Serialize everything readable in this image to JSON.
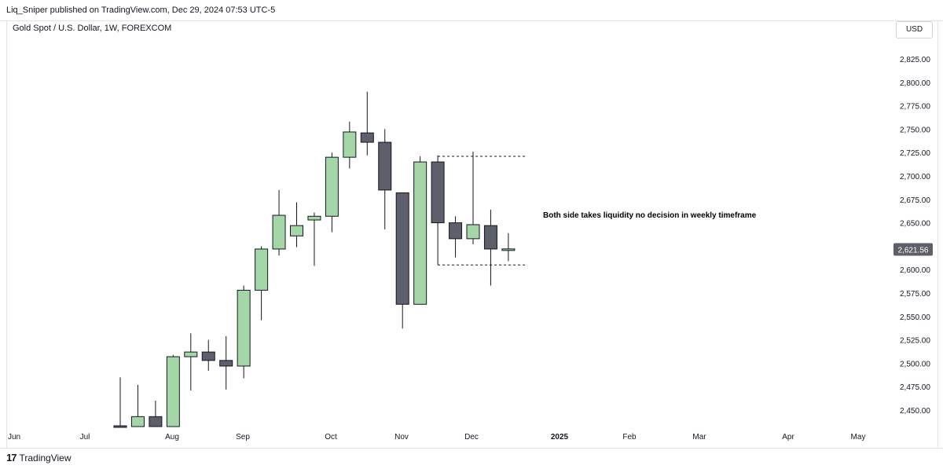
{
  "header": {
    "publish_line": "Liq_Sniper published on TradingView.com, Dec 29, 2024 07:53 UTC-5"
  },
  "symbol": {
    "title": "Gold Spot / U.S. Dollar, 1W, FOREXCOM"
  },
  "currency_button": "USD",
  "footer": {
    "brand": "TradingView",
    "logo_glyph": "17"
  },
  "colors": {
    "up_body": "#a5d6a7",
    "down_body": "#5d606b",
    "outline": "#131722",
    "price_tag_bg": "#5d606b"
  },
  "chart_data": {
    "type": "candlestick",
    "symbol": "Gold Spot / U.S. Dollar",
    "timeframe": "1W",
    "y_axis_ticks": [
      2450,
      2475,
      2500,
      2525,
      2550,
      2575,
      2600,
      2625,
      2650,
      2675,
      2700,
      2725,
      2750,
      2775,
      2800,
      2825
    ],
    "y_axis_tick_labels": [
      "2,450.00",
      "2,475.00",
      "2,500.00",
      "2,525.00",
      "2,550.00",
      "2,575.00",
      "2,600.00",
      "2,625.00",
      "2,650.00",
      "2,675.00",
      "2,700.00",
      "2,725.00",
      "2,750.00",
      "2,775.00",
      "2,800.00",
      "2,825.00"
    ],
    "ylim": [
      2430,
      2845
    ],
    "x_axis_labels": [
      "Jun",
      "Jul",
      "Aug",
      "Sep",
      "Oct",
      "Nov",
      "Dec",
      "2025",
      "Feb",
      "Mar",
      "Apr",
      "May"
    ],
    "x_axis_bold_labels": [
      "2025"
    ],
    "last_price": 2621.56,
    "last_price_label": "2,621.56",
    "candles": [
      {
        "week": "Jul 22",
        "open": 2420,
        "high": 2485,
        "low": 2360,
        "close": 2400
      },
      {
        "week": "Jul 29",
        "open": 2387,
        "high": 2477,
        "low": 2380,
        "close": 2443
      },
      {
        "week": "Aug 5",
        "open": 2443,
        "high": 2460,
        "low": 2363,
        "close": 2431
      },
      {
        "week": "Aug 12",
        "open": 2431,
        "high": 2509,
        "low": 2423,
        "close": 2507
      },
      {
        "week": "Aug 19",
        "open": 2507,
        "high": 2532,
        "low": 2471,
        "close": 2512
      },
      {
        "week": "Aug 26",
        "open": 2512,
        "high": 2525,
        "low": 2492,
        "close": 2503
      },
      {
        "week": "Sep 2",
        "open": 2503,
        "high": 2529,
        "low": 2472,
        "close": 2497
      },
      {
        "week": "Sep 9",
        "open": 2497,
        "high": 2583,
        "low": 2484,
        "close": 2578
      },
      {
        "week": "Sep 16",
        "open": 2578,
        "high": 2625,
        "low": 2546,
        "close": 2622
      },
      {
        "week": "Sep 23",
        "open": 2622,
        "high": 2685,
        "low": 2615,
        "close": 2658
      },
      {
        "week": "Sep 30",
        "open": 2636,
        "high": 2672,
        "low": 2624,
        "close": 2647
      },
      {
        "week": "Oct 7",
        "open": 2653,
        "high": 2661,
        "low": 2604,
        "close": 2657
      },
      {
        "week": "Oct 14",
        "open": 2657,
        "high": 2725,
        "low": 2640,
        "close": 2720
      },
      {
        "week": "Oct 21",
        "open": 2720,
        "high": 2758,
        "low": 2708,
        "close": 2747
      },
      {
        "week": "Oct 28",
        "open": 2746,
        "high": 2790,
        "low": 2722,
        "close": 2736
      },
      {
        "week": "Nov 4",
        "open": 2736,
        "high": 2750,
        "low": 2643,
        "close": 2685
      },
      {
        "week": "Nov 11",
        "open": 2682,
        "high": 2682,
        "low": 2537,
        "close": 2563
      },
      {
        "week": "Nov 18",
        "open": 2563,
        "high": 2721,
        "low": 2563,
        "close": 2715
      },
      {
        "week": "Nov 25",
        "open": 2715,
        "high": 2722,
        "low": 2605,
        "close": 2650
      },
      {
        "week": "Dec 2",
        "open": 2650,
        "high": 2657,
        "low": 2613,
        "close": 2633
      },
      {
        "week": "Dec 9",
        "open": 2633,
        "high": 2726,
        "low": 2627,
        "close": 2648
      },
      {
        "week": "Dec 16",
        "open": 2647,
        "high": 2664,
        "low": 2583,
        "close": 2622
      },
      {
        "week": "Dec 23",
        "open": 2621,
        "high": 2639,
        "low": 2609,
        "close": 2621.56
      }
    ],
    "annotations": [
      {
        "text": "Both side takes liquidity no decision in weekly timeframe",
        "style": "bold"
      },
      {
        "type": "dashed_level",
        "price": 2721,
        "from_week": "Nov 25",
        "to_week": "Dec 23"
      },
      {
        "type": "dashed_level",
        "price": 2605,
        "from_week": "Nov 25",
        "to_week": "Dec 23"
      }
    ],
    "grid": false
  }
}
